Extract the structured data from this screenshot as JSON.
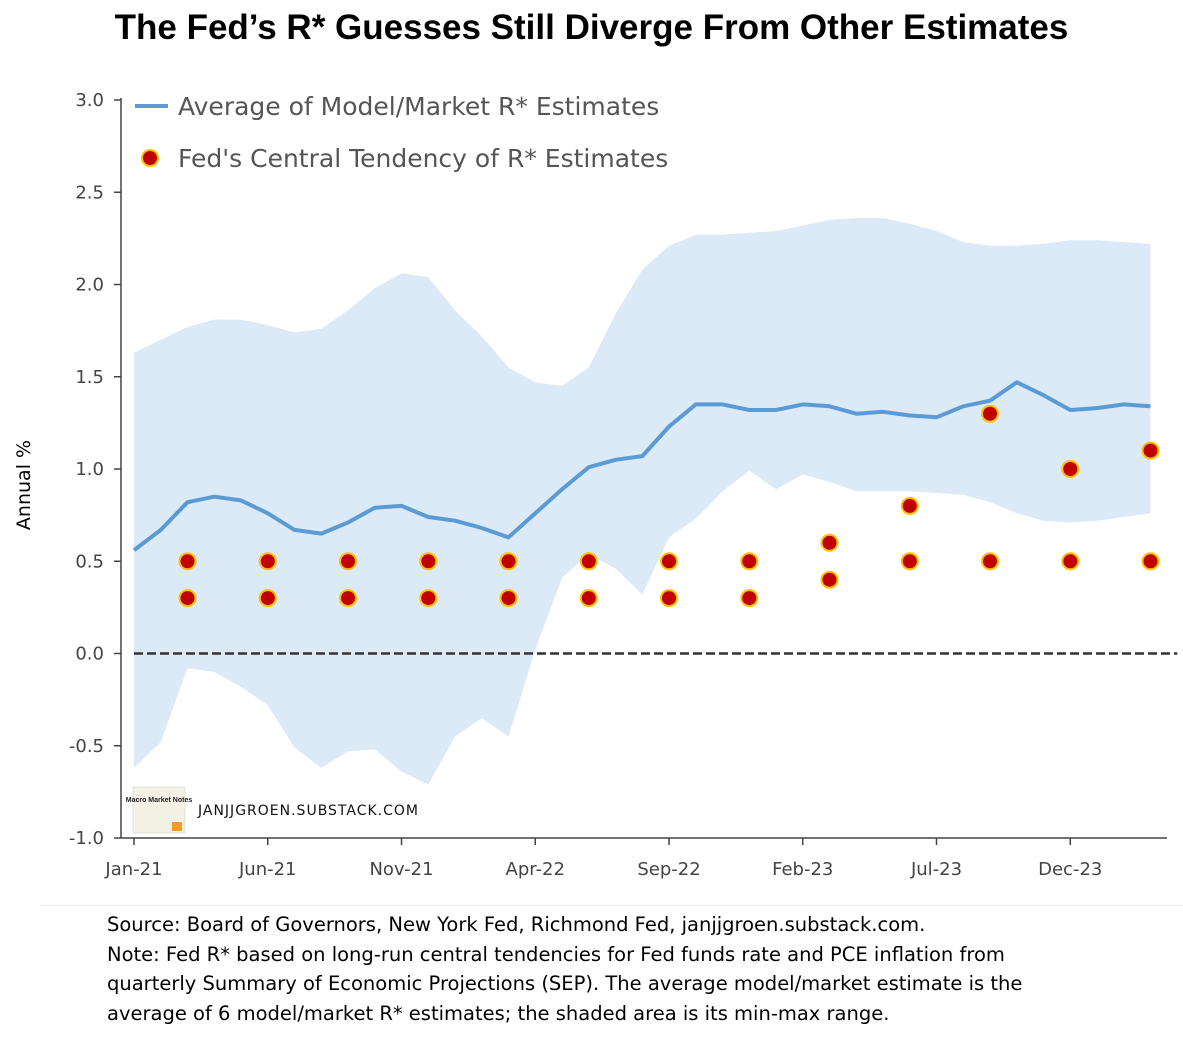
{
  "title": "The Fed’s R* Guesses Still Diverge From Other Estimates",
  "notes": [
    "Source: Board of Governors, New York Fed, Richmond Fed, janjjgroen.substack.com.",
    "Note: Fed R* based on long-run central tendencies for Fed funds rate and PCE inflation from",
    "quarterly Summary of Economic Projections (SEP). The average model/market estimate is the",
    "average of 6 model/market R* estimates; the shaded area is its  min-max range."
  ],
  "watermark": {
    "logo_text": "Macro Market Notes",
    "text": "JANJJGROEN.SUBSTACK.COM"
  },
  "colors": {
    "line": "#5b9bd5",
    "band": "#dce9f6",
    "dot_fill": "#c00000",
    "dot_edge": "#ffc000",
    "zero_line": "#333333"
  },
  "chart_data": {
    "type": "line",
    "title": "The Fed’s R* Guesses Still Diverge From Other Estimates",
    "xlabel": "",
    "ylabel": "Annual %",
    "ylim": [
      -1.0,
      3.0
    ],
    "yticks": [
      "3.0",
      "2.5",
      "2.0",
      "1.5",
      "1.0",
      "0.5",
      "0.0",
      "-0.5",
      "-1.0"
    ],
    "x_tick_labels": [
      {
        "label": "Jan-21",
        "index": 0
      },
      {
        "label": "Jun-21",
        "index": 5
      },
      {
        "label": "Nov-21",
        "index": 10
      },
      {
        "label": "Apr-22",
        "index": 15
      },
      {
        "label": "Sep-22",
        "index": 20
      },
      {
        "label": "Feb-23",
        "index": 25
      },
      {
        "label": "Jul-23",
        "index": 30
      },
      {
        "label": "Dec-23",
        "index": 35
      }
    ],
    "x_months": [
      "Jan-21",
      "Feb-21",
      "Mar-21",
      "Apr-21",
      "May-21",
      "Jun-21",
      "Jul-21",
      "Aug-21",
      "Sep-21",
      "Oct-21",
      "Nov-21",
      "Dec-21",
      "Jan-22",
      "Feb-22",
      "Mar-22",
      "Apr-22",
      "May-22",
      "Jun-22",
      "Jul-22",
      "Aug-22",
      "Sep-22",
      "Oct-22",
      "Nov-22",
      "Dec-22",
      "Jan-23",
      "Feb-23",
      "Mar-23",
      "Apr-23",
      "May-23",
      "Jun-23",
      "Jul-23",
      "Aug-23",
      "Sep-23",
      "Oct-23",
      "Nov-23",
      "Dec-23",
      "Jan-24",
      "Feb-24",
      "Mar-24",
      "Apr-24"
    ],
    "legend_position": "top-left",
    "grid": false,
    "series": [
      {
        "name": "Average of Model/Market R* Estimates",
        "type": "line",
        "values": [
          0.56,
          0.67,
          0.82,
          0.85,
          0.83,
          0.76,
          0.67,
          0.65,
          0.71,
          0.79,
          0.8,
          0.74,
          0.72,
          0.68,
          0.63,
          0.76,
          0.89,
          1.01,
          1.05,
          1.07,
          1.23,
          1.35,
          1.35,
          1.32,
          1.32,
          1.35,
          1.34,
          1.3,
          1.31,
          1.29,
          1.28,
          1.34,
          1.37,
          1.47,
          1.4,
          1.32,
          1.33,
          1.35,
          1.34
        ]
      },
      {
        "name": "min-max range",
        "type": "area",
        "upper": [
          1.63,
          1.7,
          1.77,
          1.81,
          1.81,
          1.78,
          1.74,
          1.76,
          1.86,
          1.98,
          2.06,
          2.04,
          1.86,
          1.72,
          1.55,
          1.47,
          1.45,
          1.55,
          1.84,
          2.08,
          2.21,
          2.27,
          2.27,
          2.28,
          2.29,
          2.32,
          2.35,
          2.36,
          2.36,
          2.33,
          2.29,
          2.23,
          2.21,
          2.21,
          2.22,
          2.24,
          2.24,
          2.23,
          2.22
        ],
        "lower": [
          -0.62,
          -0.48,
          -0.08,
          -0.1,
          -0.18,
          -0.28,
          -0.51,
          -0.62,
          -0.53,
          -0.52,
          -0.64,
          -0.71,
          -0.45,
          -0.35,
          -0.45,
          0.02,
          0.41,
          0.54,
          0.46,
          0.32,
          0.63,
          0.73,
          0.88,
          0.99,
          0.89,
          0.97,
          0.93,
          0.88,
          0.88,
          0.88,
          0.87,
          0.86,
          0.82,
          0.76,
          0.72,
          0.71,
          0.72,
          0.74,
          0.76
        ]
      },
      {
        "name": "Fed's Central Tendency of R* Estimates",
        "type": "scatter",
        "points": [
          {
            "x": 2,
            "y": 0.5
          },
          {
            "x": 2,
            "y": 0.3
          },
          {
            "x": 5,
            "y": 0.5
          },
          {
            "x": 5,
            "y": 0.3
          },
          {
            "x": 8,
            "y": 0.5
          },
          {
            "x": 8,
            "y": 0.3
          },
          {
            "x": 11,
            "y": 0.5
          },
          {
            "x": 11,
            "y": 0.3
          },
          {
            "x": 14,
            "y": 0.5
          },
          {
            "x": 14,
            "y": 0.3
          },
          {
            "x": 17,
            "y": 0.5
          },
          {
            "x": 17,
            "y": 0.3
          },
          {
            "x": 20,
            "y": 0.5
          },
          {
            "x": 20,
            "y": 0.3
          },
          {
            "x": 23,
            "y": 0.5
          },
          {
            "x": 23,
            "y": 0.3
          },
          {
            "x": 26,
            "y": 0.6
          },
          {
            "x": 26,
            "y": 0.4
          },
          {
            "x": 29,
            "y": 0.8
          },
          {
            "x": 29,
            "y": 0.5
          },
          {
            "x": 32,
            "y": 1.3
          },
          {
            "x": 32,
            "y": 0.5
          },
          {
            "x": 35,
            "y": 1.0
          },
          {
            "x": 35,
            "y": 0.5
          },
          {
            "x": 38,
            "y": 1.1
          },
          {
            "x": 38,
            "y": 0.5
          }
        ]
      },
      {
        "name": "",
        "type": "reference-line",
        "value": 0.0
      }
    ]
  }
}
